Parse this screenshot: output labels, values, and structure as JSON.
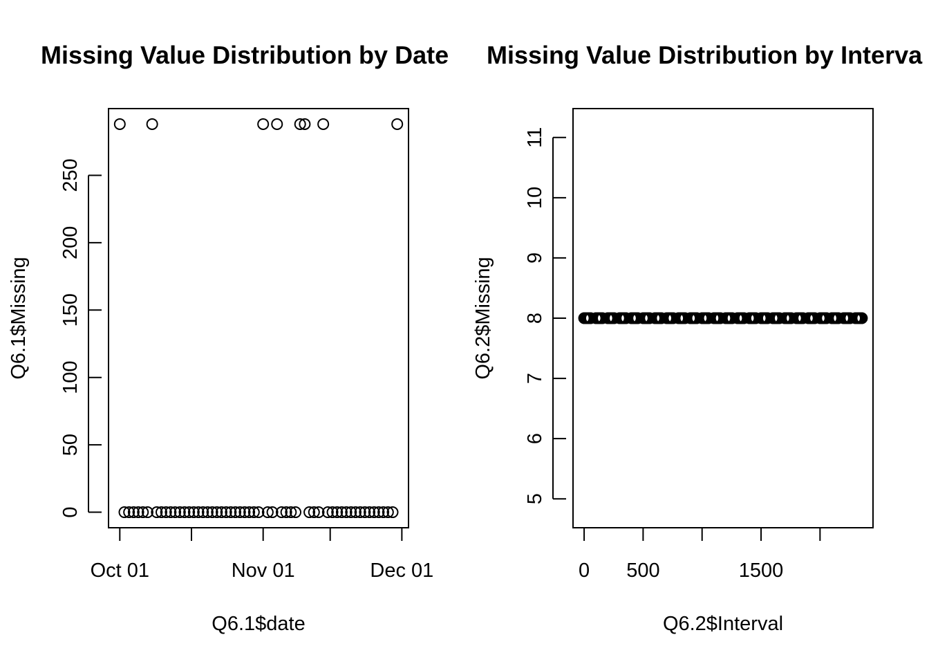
{
  "chart_data": [
    {
      "type": "scatter",
      "title": "Missing Value Distribution by Date",
      "xlabel": "Q6.1$date",
      "ylabel": "Q6.1$Missing",
      "x_ticks": [
        "Oct 01",
        "",
        "Nov 01",
        "",
        "Dec 01"
      ],
      "x_tick_values": [
        0,
        15.5,
        31,
        45.5,
        61
      ],
      "y_ticks": [
        "0",
        "50",
        "100",
        "150",
        "200",
        "250"
      ],
      "y_tick_values": [
        0,
        50,
        100,
        150,
        200,
        250
      ],
      "xlim": [
        -2.44,
        62.44
      ],
      "ylim": [
        -11.52,
        299.52
      ],
      "x_unit": "days since Oct 01",
      "x": [
        0,
        1,
        2,
        3,
        4,
        5,
        6,
        7,
        8,
        9,
        10,
        11,
        12,
        13,
        14,
        15,
        16,
        17,
        18,
        19,
        20,
        21,
        22,
        23,
        24,
        25,
        26,
        27,
        28,
        29,
        30,
        31,
        32,
        33,
        34,
        35,
        36,
        37,
        38,
        39,
        40,
        41,
        42,
        43,
        44,
        45,
        46,
        47,
        48,
        49,
        50,
        51,
        52,
        53,
        54,
        55,
        56,
        57,
        58,
        59,
        60
      ],
      "y": [
        288,
        0,
        0,
        0,
        0,
        0,
        0,
        288,
        0,
        0,
        0,
        0,
        0,
        0,
        0,
        0,
        0,
        0,
        0,
        0,
        0,
        0,
        0,
        0,
        0,
        0,
        0,
        0,
        0,
        0,
        0,
        288,
        0,
        0,
        288,
        0,
        0,
        0,
        0,
        288,
        288,
        0,
        0,
        0,
        288,
        0,
        0,
        0,
        0,
        0,
        0,
        0,
        0,
        0,
        0,
        0,
        0,
        0,
        0,
        0,
        288
      ],
      "grid": false,
      "marker": "open-circle"
    },
    {
      "type": "scatter",
      "title": "Missing Value Distribution by Interval",
      "xlabel": "Q6.2$Interval",
      "ylabel": "Q6.2$Missing",
      "x_ticks": [
        "0",
        "500",
        "",
        "1500",
        ""
      ],
      "x_tick_values": [
        0,
        500,
        1000,
        1500,
        2000
      ],
      "y_ticks": [
        "5",
        "6",
        "7",
        "8",
        "9",
        "10",
        "11"
      ],
      "y_tick_values": [
        5,
        6,
        7,
        8,
        9,
        10,
        11
      ],
      "xlim": [
        -94.2,
        2449.2
      ],
      "ylim": [
        4.52,
        11.48
      ],
      "x_series": {
        "hours": 24,
        "minutes_step": 5,
        "max_minute": 55
      },
      "y_constant": 8,
      "grid": false,
      "marker": "open-circle"
    }
  ]
}
